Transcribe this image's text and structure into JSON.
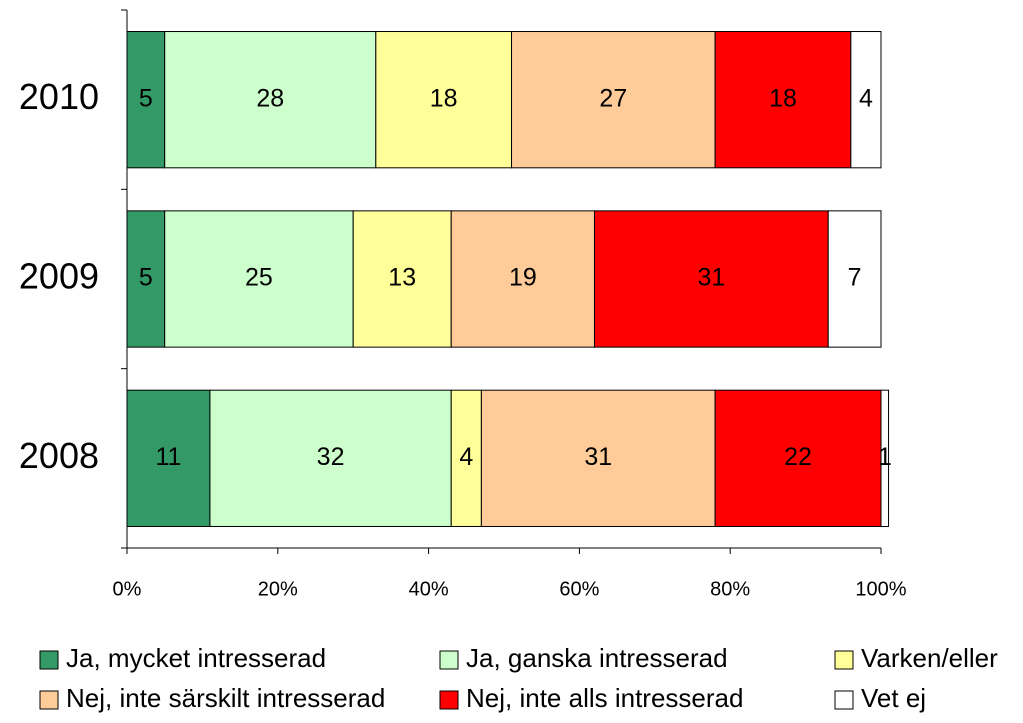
{
  "chart_data": {
    "type": "stacked-barh",
    "categories": [
      "2010",
      "2009",
      "2008"
    ],
    "series": [
      {
        "name": "Ja, mycket intresserad",
        "color": "#339966",
        "values": [
          5,
          5,
          11
        ]
      },
      {
        "name": "Ja, ganska intresserad",
        "color": "#ccffcc",
        "values": [
          28,
          25,
          32
        ]
      },
      {
        "name": "Varken/eller",
        "color": "#ffff99",
        "values": [
          18,
          13,
          4
        ]
      },
      {
        "name": "Nej, inte särskilt intresserad",
        "color": "#ffcc99",
        "values": [
          27,
          19,
          31
        ]
      },
      {
        "name": "Nej, inte alls intresserad",
        "color": "#ff0000",
        "values": [
          18,
          31,
          22
        ]
      },
      {
        "name": "Vet ej",
        "color": "#ffffff",
        "values": [
          4,
          7,
          1
        ]
      }
    ],
    "xlim": [
      0,
      100
    ],
    "xticks": [
      {
        "value": 0,
        "label": "0%"
      },
      {
        "value": 20,
        "label": "20%"
      },
      {
        "value": 40,
        "label": "40%"
      },
      {
        "value": 60,
        "label": "60%"
      },
      {
        "value": 80,
        "label": "80%"
      },
      {
        "value": 100,
        "label": "100%"
      }
    ],
    "legend": "bottom"
  }
}
